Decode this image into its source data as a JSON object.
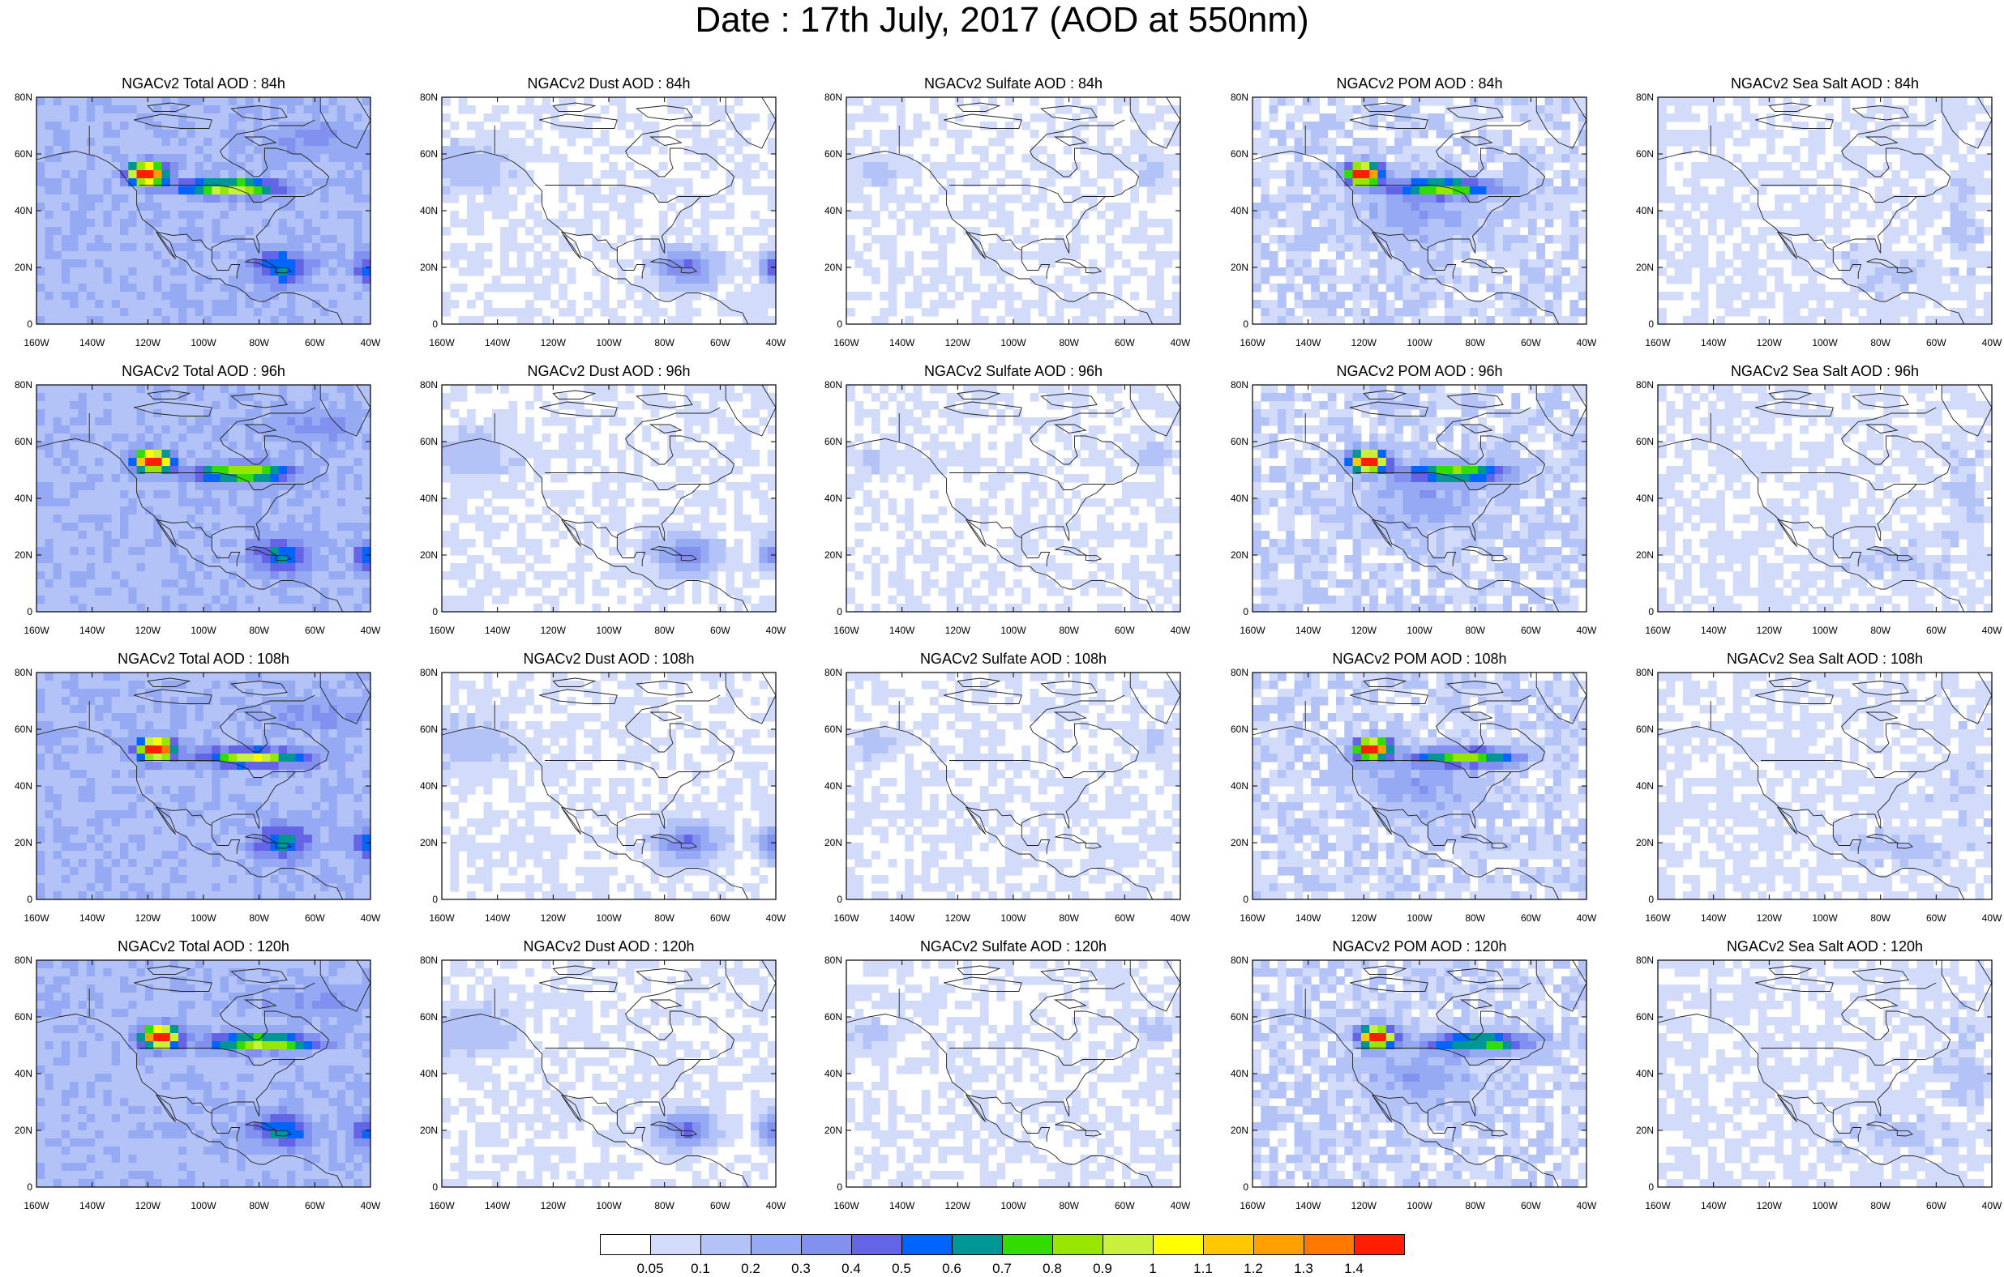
{
  "title": "Date : 17th July, 2017 (AOD at 550nm)",
  "lat_ticks": [
    "80N",
    "60N",
    "40N",
    "20N",
    "0"
  ],
  "lon_ticks": [
    "160W",
    "140W",
    "120W",
    "100W",
    "80W",
    "60W",
    "40W"
  ],
  "rows": [
    {
      "panels": [
        {
          "title": "NGACv2 Total AOD : 84h",
          "species": "total"
        },
        {
          "title": "NGACv2 Dust AOD : 84h",
          "species": "dust"
        },
        {
          "title": "NGACv2 Sulfate AOD : 84h",
          "species": "sulfate"
        },
        {
          "title": "NGACv2 POM AOD : 84h",
          "species": "pom"
        },
        {
          "title": "NGACv2 Sea Salt AOD : 84h",
          "species": "seasalt"
        }
      ]
    },
    {
      "panels": [
        {
          "title": "NGACv2 Total AOD : 96h",
          "species": "total"
        },
        {
          "title": "NGACv2 Dust AOD : 96h",
          "species": "dust"
        },
        {
          "title": "NGACv2 Sulfate AOD : 96h",
          "species": "sulfate"
        },
        {
          "title": "NGACv2 POM AOD : 96h",
          "species": "pom"
        },
        {
          "title": "NGACv2 Sea Salt AOD : 96h",
          "species": "seasalt"
        }
      ]
    },
    {
      "panels": [
        {
          "title": "NGACv2 Total AOD : 108h",
          "species": "total"
        },
        {
          "title": "NGACv2 Dust AOD : 108h",
          "species": "dust"
        },
        {
          "title": "NGACv2 Sulfate AOD : 108h",
          "species": "sulfate"
        },
        {
          "title": "NGACv2 POM AOD : 108h",
          "species": "pom"
        },
        {
          "title": "NGACv2 Sea Salt AOD : 108h",
          "species": "seasalt"
        }
      ]
    },
    {
      "panels": [
        {
          "title": "NGACv2 Total AOD : 120h",
          "species": "total"
        },
        {
          "title": "NGACv2 Dust AOD : 120h",
          "species": "dust"
        },
        {
          "title": "NGACv2 Sulfate AOD : 120h",
          "species": "sulfate"
        },
        {
          "title": "NGACv2 POM AOD : 120h",
          "species": "pom"
        },
        {
          "title": "NGACv2 Sea Salt  AOD : 120h",
          "species": "seasalt"
        }
      ]
    }
  ],
  "colorbar": {
    "labels": [
      "0.05",
      "0.1",
      "0.2",
      "0.3",
      "0.4",
      "0.5",
      "0.6",
      "0.7",
      "0.8",
      "0.9",
      "1",
      "1.1",
      "1.2",
      "1.3",
      "1.4"
    ],
    "colors": [
      "#ffffff",
      "#d2dcfa",
      "#b4c3f7",
      "#96aaf3",
      "#8291f0",
      "#6464e6",
      "#0064ff",
      "#009696",
      "#32dc00",
      "#96e600",
      "#c8f03c",
      "#ffff00",
      "#ffc800",
      "#ffa000",
      "#ff7800",
      "#ff1e00"
    ]
  }
}
